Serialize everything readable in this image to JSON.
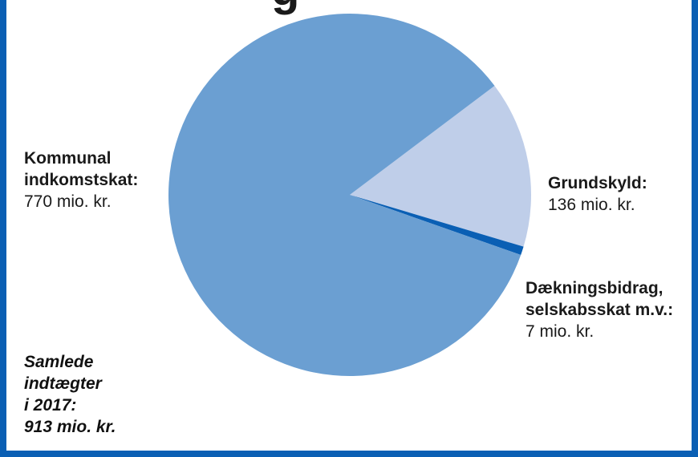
{
  "title_fragment": "g",
  "chart_data": {
    "type": "pie",
    "total": 913,
    "unit": "mio. kr.",
    "series": [
      {
        "name": "Kommunal indkomstskat",
        "value": 770,
        "color": "#6b9fd2"
      },
      {
        "name": "Grundskyld",
        "value": 136,
        "color": "#bfcee9"
      },
      {
        "name": "Dækningsbidrag, selskabsskat m.v.",
        "value": 7,
        "color": "#0a5fb4"
      }
    ]
  },
  "labels": {
    "kommunal": {
      "line1": "Kommunal",
      "line2": "indkomstskat:",
      "value": "770 mio. kr."
    },
    "grundskyld": {
      "line1": "Grundskyld:",
      "value": "136 mio. kr."
    },
    "daekning": {
      "line1": "Dækningsbidrag,",
      "line2": "selskabsskat m.v.:",
      "value": "7 mio. kr."
    }
  },
  "total_text": {
    "line1": "Samlede",
    "line2": "indtægter",
    "line3": "i 2017:",
    "line4": "913 mio. kr."
  }
}
